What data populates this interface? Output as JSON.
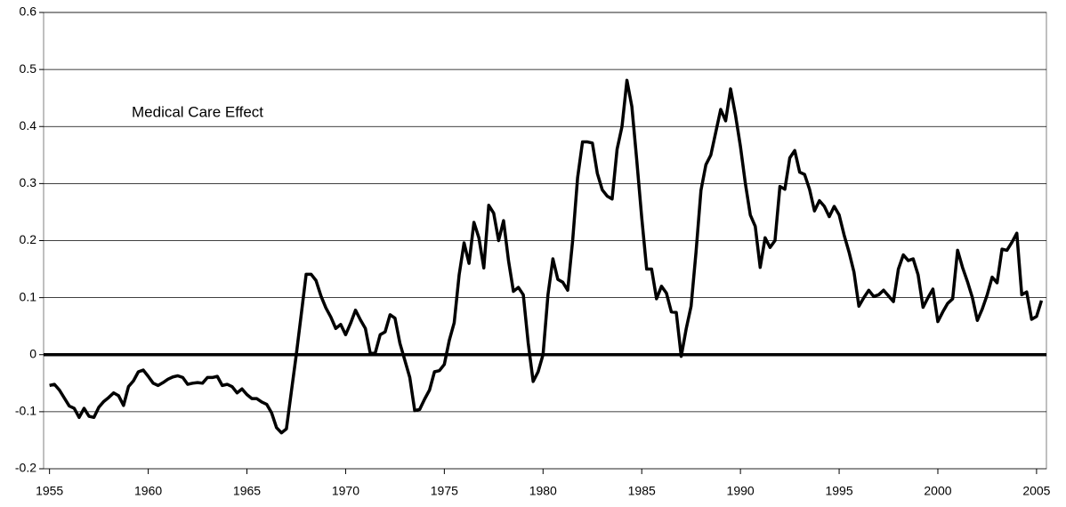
{
  "chart_data": {
    "type": "line",
    "annotation": "Medical Care Effect",
    "color": "#000000",
    "grid": true,
    "xlim": [
      1954.7,
      2005.5
    ],
    "ylim": [
      -0.2,
      0.6
    ],
    "xticks": [
      1955,
      1960,
      1965,
      1970,
      1975,
      1980,
      1985,
      1990,
      1995,
      2000,
      2005
    ],
    "yticks": [
      -0.2,
      -0.1,
      0,
      0.1,
      0.2,
      0.3,
      0.4,
      0.5,
      0.6
    ],
    "x": [
      1955.0,
      1955.25,
      1955.5,
      1955.75,
      1956.0,
      1956.25,
      1956.5,
      1956.75,
      1957.0,
      1957.25,
      1957.5,
      1957.75,
      1958.0,
      1958.25,
      1958.5,
      1958.75,
      1959.0,
      1959.25,
      1959.5,
      1959.75,
      1960.0,
      1960.25,
      1960.5,
      1960.75,
      1961.0,
      1961.25,
      1961.5,
      1961.75,
      1962.0,
      1962.25,
      1962.5,
      1962.75,
      1963.0,
      1963.25,
      1963.5,
      1963.75,
      1964.0,
      1964.25,
      1964.5,
      1964.75,
      1965.0,
      1965.25,
      1965.5,
      1965.75,
      1966.0,
      1966.25,
      1966.5,
      1966.75,
      1967.0,
      1967.25,
      1967.5,
      1967.75,
      1968.0,
      1968.25,
      1968.5,
      1968.75,
      1969.0,
      1969.25,
      1969.5,
      1969.75,
      1970.0,
      1970.25,
      1970.5,
      1970.75,
      1971.0,
      1971.25,
      1971.5,
      1971.75,
      1972.0,
      1972.25,
      1972.5,
      1972.75,
      1973.0,
      1973.25,
      1973.5,
      1973.75,
      1974.0,
      1974.25,
      1974.5,
      1974.75,
      1975.0,
      1975.25,
      1975.5,
      1975.75,
      1976.0,
      1976.25,
      1976.5,
      1976.75,
      1977.0,
      1977.25,
      1977.5,
      1977.75,
      1978.0,
      1978.25,
      1978.5,
      1978.75,
      1979.0,
      1979.25,
      1979.5,
      1979.75,
      1980.0,
      1980.25,
      1980.5,
      1980.75,
      1981.0,
      1981.25,
      1981.5,
      1981.75,
      1982.0,
      1982.25,
      1982.5,
      1982.75,
      1983.0,
      1983.25,
      1983.5,
      1983.75,
      1984.0,
      1984.25,
      1984.5,
      1984.75,
      1985.0,
      1985.25,
      1985.5,
      1985.75,
      1986.0,
      1986.25,
      1986.5,
      1986.75,
      1987.0,
      1987.25,
      1987.5,
      1987.75,
      1988.0,
      1988.25,
      1988.5,
      1988.75,
      1989.0,
      1989.25,
      1989.5,
      1989.75,
      1990.0,
      1990.25,
      1990.5,
      1990.75,
      1991.0,
      1991.25,
      1991.5,
      1991.75,
      1992.0,
      1992.25,
      1992.5,
      1992.75,
      1993.0,
      1993.25,
      1993.5,
      1993.75,
      1994.0,
      1994.25,
      1994.5,
      1994.75,
      1995.0,
      1995.25,
      1995.5,
      1995.75,
      1996.0,
      1996.25,
      1996.5,
      1996.75,
      1997.0,
      1997.25,
      1997.5,
      1997.75,
      1998.0,
      1998.25,
      1998.5,
      1998.75,
      1999.0,
      1999.25,
      1999.5,
      1999.75,
      2000.0,
      2000.25,
      2000.5,
      2000.75,
      2001.0,
      2001.25,
      2001.5,
      2001.75,
      2002.0,
      2002.25,
      2002.5,
      2002.75,
      2003.0,
      2003.25,
      2003.5,
      2003.75,
      2004.0,
      2004.25,
      2004.5,
      2004.75,
      2005.0,
      2005.25
    ],
    "values": [
      -0.054,
      -0.052,
      -0.062,
      -0.076,
      -0.09,
      -0.094,
      -0.11,
      -0.094,
      -0.108,
      -0.11,
      -0.092,
      -0.082,
      -0.075,
      -0.067,
      -0.072,
      -0.089,
      -0.056,
      -0.046,
      -0.03,
      -0.027,
      -0.038,
      -0.05,
      -0.054,
      -0.049,
      -0.043,
      -0.039,
      -0.037,
      -0.04,
      -0.052,
      -0.05,
      -0.049,
      -0.05,
      -0.04,
      -0.04,
      -0.038,
      -0.054,
      -0.052,
      -0.056,
      -0.067,
      -0.06,
      -0.07,
      -0.077,
      -0.077,
      -0.083,
      -0.087,
      -0.102,
      -0.128,
      -0.137,
      -0.13,
      -0.065,
      0.0,
      0.07,
      0.141,
      0.141,
      0.13,
      0.103,
      0.082,
      0.066,
      0.046,
      0.053,
      0.035,
      0.055,
      0.078,
      0.061,
      0.046,
      0.002,
      0.003,
      0.035,
      0.04,
      0.07,
      0.064,
      0.02,
      -0.01,
      -0.04,
      -0.098,
      -0.096,
      -0.078,
      -0.062,
      -0.03,
      -0.028,
      -0.017,
      0.025,
      0.056,
      0.14,
      0.196,
      0.16,
      0.232,
      0.205,
      0.152,
      0.262,
      0.248,
      0.2,
      0.235,
      0.165,
      0.111,
      0.118,
      0.105,
      0.02,
      -0.047,
      -0.03,
      0.0,
      0.105,
      0.168,
      0.132,
      0.127,
      0.113,
      0.2,
      0.31,
      0.373,
      0.373,
      0.371,
      0.318,
      0.289,
      0.278,
      0.273,
      0.36,
      0.4,
      0.481,
      0.435,
      0.34,
      0.24,
      0.15,
      0.15,
      0.098,
      0.12,
      0.108,
      0.075,
      0.074,
      -0.003,
      0.045,
      0.085,
      0.18,
      0.288,
      0.333,
      0.35,
      0.39,
      0.43,
      0.41,
      0.466,
      0.42,
      0.365,
      0.3,
      0.245,
      0.225,
      0.153,
      0.205,
      0.188,
      0.2,
      0.295,
      0.29,
      0.345,
      0.358,
      0.32,
      0.316,
      0.29,
      0.252,
      0.27,
      0.26,
      0.242,
      0.26,
      0.245,
      0.21,
      0.18,
      0.145,
      0.085,
      0.1,
      0.113,
      0.102,
      0.105,
      0.113,
      0.103,
      0.093,
      0.15,
      0.175,
      0.165,
      0.168,
      0.14,
      0.083,
      0.1,
      0.115,
      0.058,
      0.075,
      0.09,
      0.098,
      0.183,
      0.153,
      0.128,
      0.1,
      0.06,
      0.08,
      0.105,
      0.136,
      0.126,
      0.185,
      0.183,
      0.197,
      0.213,
      0.105,
      0.11,
      0.062,
      0.067,
      0.095
    ]
  }
}
